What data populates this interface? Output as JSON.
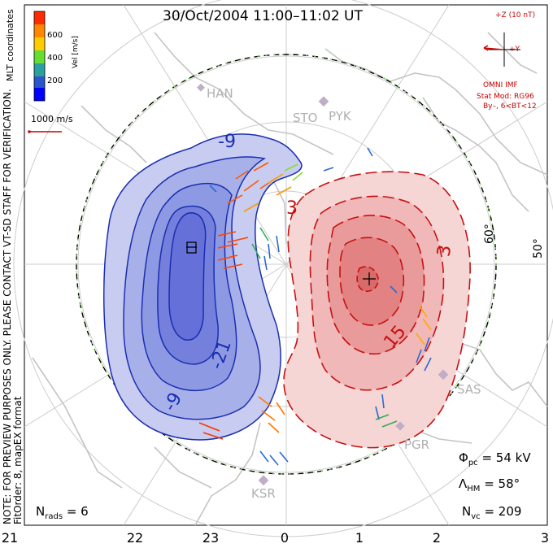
{
  "title": "30/Oct/2004 11:00–11:02 UT",
  "coord_label": "MLT coordinates",
  "colorbar": {
    "label": "Vel [m/s]",
    "ticks": [
      "600",
      "400",
      "200"
    ],
    "colors": [
      "#ff2a00",
      "#ff8800",
      "#ffcc00",
      "#66dd33",
      "#2aa0a0",
      "#2a55cc",
      "#0000ff"
    ]
  },
  "scale_vector": {
    "label": "1000 m/s",
    "color": "#cc0000"
  },
  "imf": {
    "z_label": "+Z (10 nT)",
    "y_label": "+Y",
    "source": "OMNI IMF",
    "model": "Stat Mod: RG96",
    "condition": "By–, 6<BT<12",
    "color": "#cc0000"
  },
  "note_lines": [
    "NOTE: FOR PREVIEW PURPOSES ONLY. PLEASE CONTACT VT-SD STAFF FOR VERIFICATION.",
    "FitOrder: 8, mapEX format"
  ],
  "stations": [
    "HAN",
    "STO",
    "PYK",
    "SAS",
    "PGR",
    "KSR"
  ],
  "lat_labels": [
    "60°",
    "50°"
  ],
  "contour_labels": {
    "negative": [
      "-9",
      "-21",
      "-9"
    ],
    "positive": [
      "3",
      "15",
      "3"
    ]
  },
  "mlt_axis": [
    "21",
    "22",
    "23",
    "0",
    "1",
    "2",
    "3"
  ],
  "stats": {
    "phi_symbol": "Φ",
    "phi_sub": "pc",
    "phi_value": "= 54 kV",
    "lambda_symbol": "Λ",
    "lambda_sub": "HM",
    "lambda_value": "= 58°",
    "nvc_symbol": "N",
    "nvc_sub": "vc",
    "nvc_value": "= 209",
    "nrads_symbol": "N",
    "nrads_sub": "rads",
    "nrads_value": "= 6"
  },
  "colors": {
    "negative_cell": "#3344cc",
    "positive_cell": "#cc1111",
    "grid": "#c8c8c8",
    "coast": "#c8c8c8"
  }
}
